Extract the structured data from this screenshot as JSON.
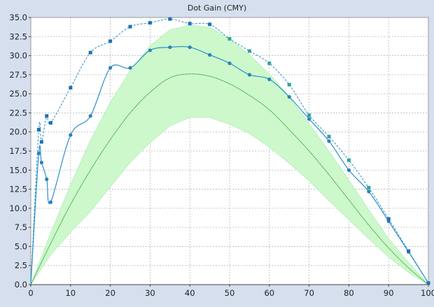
{
  "colors": {
    "background": "#d5dfee",
    "plot_area": "#ffffff",
    "grid": "#b8b8b8",
    "band_fill": "#ccf8cc",
    "band_edge": "#b3efb3",
    "reference_line": "#1a8f1a",
    "measured_line": "#2a8fc8",
    "measured_marker": "#2a82b8",
    "dashed_line": "#2a8fc8",
    "dashed_marker": "#1f70b0",
    "dashed_marker_alt": "#2ea49a",
    "text": "#222222",
    "axis_line": "#444444"
  },
  "chart_data": {
    "type": "line",
    "title": "Dot Gain (CMY)",
    "xlabel": "",
    "ylabel": "",
    "xlim": [
      0,
      100
    ],
    "ylim": [
      0,
      35
    ],
    "x_ticks": [
      0,
      10,
      20,
      30,
      40,
      50,
      60,
      70,
      80,
      90,
      100
    ],
    "x_tick_labels": [
      "0",
      "10",
      "20",
      "30",
      "40",
      "50",
      "60",
      "70",
      "80",
      "90",
      "100"
    ],
    "y_ticks": [
      0,
      2.5,
      5,
      7.5,
      10,
      12.5,
      15,
      17.5,
      20,
      22.5,
      25,
      27.5,
      30,
      32.5,
      35
    ],
    "y_tick_labels": [
      "0.0",
      "2.5",
      "5.0",
      "7.5",
      "10.0",
      "12.5",
      "15.0",
      "17.5",
      "20.0",
      "22.5",
      "25.0",
      "27.5",
      "30.0",
      "32.5",
      "35.0"
    ],
    "grid": true,
    "legend": "none",
    "tolerance_band": {
      "x": [
        0,
        5,
        10,
        15,
        20,
        25,
        30,
        35,
        40,
        45,
        50,
        55,
        60,
        65,
        70,
        75,
        80,
        85,
        90,
        95,
        100
      ],
      "upper": [
        0,
        6.8,
        13.1,
        18.9,
        23.9,
        28.0,
        31.3,
        33.4,
        34.0,
        33.7,
        32.2,
        30.1,
        27.6,
        24.6,
        21.1,
        17.5,
        13.7,
        9.8,
        6.0,
        2.9,
        0
      ],
      "lower": [
        0,
        3.9,
        6.9,
        9.6,
        12.8,
        16.0,
        18.6,
        20.8,
        21.9,
        21.9,
        21.0,
        19.8,
        18.0,
        15.9,
        13.6,
        11.0,
        8.5,
        6.0,
        3.6,
        1.6,
        0
      ]
    },
    "series": [
      {
        "style": "reference",
        "x": [
          0,
          5,
          10,
          15,
          20,
          25,
          30,
          35,
          40,
          45,
          50,
          55,
          60,
          65,
          70,
          75,
          80,
          85,
          90,
          95,
          100
        ],
        "y": [
          0,
          5.4,
          10.5,
          15.0,
          19.0,
          22.5,
          25.2,
          27.1,
          27.6,
          27.3,
          26.3,
          24.8,
          22.9,
          20.3,
          17.5,
          14.4,
          11.1,
          7.8,
          4.8,
          2.2,
          0
        ]
      },
      {
        "style": "measured",
        "x": [
          0,
          2,
          2.7,
          4,
          5,
          10,
          15,
          20,
          25,
          30,
          35,
          40,
          45,
          50,
          55,
          60,
          65,
          70,
          75,
          80,
          85,
          90,
          95,
          100
        ],
        "y": [
          0,
          17.2,
          16.0,
          13.8,
          10.8,
          19.6,
          22.1,
          28.4,
          28.4,
          30.7,
          31.1,
          31.1,
          30.1,
          29.0,
          27.5,
          26.9,
          24.6,
          21.7,
          18.8,
          15.0,
          12.2,
          8.3,
          4.3,
          0.2
        ]
      },
      {
        "style": "dashed",
        "x": [
          0,
          2,
          2.7,
          4,
          5,
          10,
          15,
          20,
          25,
          30,
          35,
          40,
          45,
          50,
          55,
          60,
          65,
          70,
          75,
          80,
          85,
          90,
          95,
          100
        ],
        "y": [
          0,
          20.3,
          18.7,
          22.1,
          21.2,
          25.8,
          30.4,
          31.9,
          33.8,
          34.3,
          34.8,
          34.2,
          34.1,
          32.2,
          30.6,
          29.0,
          26.2,
          22.2,
          19.4,
          16.3,
          12.7,
          8.6,
          4.4,
          0.2
        ]
      }
    ]
  }
}
